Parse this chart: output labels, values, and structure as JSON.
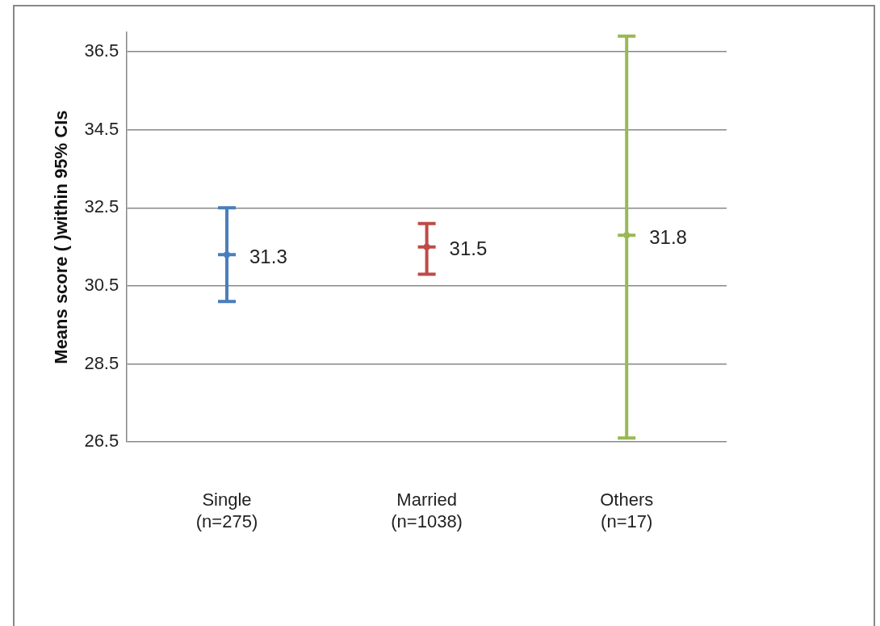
{
  "chart_data": {
    "type": "scatter",
    "ylabel": "Means score ( )within 95% CIs",
    "categories": [
      "Single\n(n=275)",
      "Married\n(n=1038)",
      "Others\n(n=17)"
    ],
    "values": [
      31.3,
      31.5,
      31.8
    ],
    "colors": [
      "#4a7ebb",
      "#be4b48",
      "#98b954"
    ],
    "errors": [
      [
        30.1,
        32.5
      ],
      [
        30.8,
        32.1
      ],
      [
        26.6,
        36.9
      ]
    ],
    "data_labels": true,
    "ylim": [
      26.5,
      37
    ],
    "yticks": [
      26.5,
      28.5,
      30.5,
      32.5,
      34.5,
      36.5
    ],
    "grid": "y",
    "legend": false
  }
}
